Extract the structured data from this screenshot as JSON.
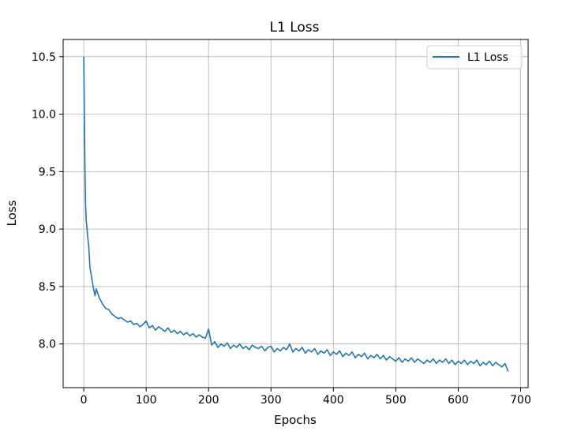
{
  "chart_data": {
    "type": "line",
    "title": "L1 Loss",
    "xlabel": "Epochs",
    "ylabel": "Loss",
    "xlim": [
      -33,
      712
    ],
    "ylim": [
      7.62,
      10.65
    ],
    "xticks": [
      0,
      100,
      200,
      300,
      400,
      500,
      600,
      700
    ],
    "yticks": [
      8.0,
      8.5,
      9.0,
      9.5,
      10.0,
      10.5
    ],
    "grid": true,
    "legend_position": "top-right",
    "series": [
      {
        "name": "L1 Loss",
        "color": "#1f77b4",
        "x": [
          0,
          1,
          2,
          3,
          4,
          5,
          6,
          8,
          10,
          12,
          15,
          18,
          20,
          25,
          30,
          35,
          40,
          45,
          50,
          55,
          60,
          65,
          70,
          75,
          80,
          85,
          90,
          95,
          100,
          105,
          110,
          115,
          120,
          125,
          130,
          135,
          140,
          145,
          150,
          155,
          160,
          165,
          170,
          175,
          180,
          185,
          190,
          195,
          200,
          205,
          210,
          215,
          220,
          225,
          230,
          235,
          240,
          245,
          250,
          255,
          260,
          265,
          270,
          275,
          280,
          285,
          290,
          295,
          300,
          305,
          310,
          315,
          320,
          325,
          330,
          335,
          340,
          345,
          350,
          355,
          360,
          365,
          370,
          375,
          380,
          385,
          390,
          395,
          400,
          405,
          410,
          415,
          420,
          425,
          430,
          435,
          440,
          445,
          450,
          455,
          460,
          465,
          470,
          475,
          480,
          485,
          490,
          495,
          500,
          505,
          510,
          515,
          520,
          525,
          530,
          535,
          540,
          545,
          550,
          555,
          560,
          565,
          570,
          575,
          580,
          585,
          590,
          595,
          600,
          605,
          610,
          615,
          620,
          625,
          630,
          635,
          640,
          645,
          650,
          655,
          660,
          665,
          670,
          675,
          680
        ],
        "y": [
          10.5,
          10.0,
          9.5,
          9.2,
          9.07,
          9.02,
          8.95,
          8.85,
          8.66,
          8.6,
          8.5,
          8.42,
          8.48,
          8.4,
          8.35,
          8.31,
          8.3,
          8.26,
          8.24,
          8.22,
          8.23,
          8.21,
          8.19,
          8.2,
          8.17,
          8.18,
          8.15,
          8.17,
          8.2,
          8.14,
          8.16,
          8.12,
          8.15,
          8.13,
          8.11,
          8.14,
          8.1,
          8.12,
          8.09,
          8.11,
          8.08,
          8.1,
          8.07,
          8.09,
          8.06,
          8.08,
          8.06,
          8.05,
          8.13,
          7.99,
          8.02,
          7.97,
          8.0,
          7.98,
          8.01,
          7.96,
          7.99,
          7.97,
          8.0,
          7.96,
          7.98,
          7.95,
          7.99,
          7.97,
          7.96,
          7.98,
          7.94,
          7.97,
          7.98,
          7.93,
          7.96,
          7.94,
          7.97,
          7.95,
          8.0,
          7.93,
          7.96,
          7.94,
          7.97,
          7.92,
          7.95,
          7.93,
          7.96,
          7.91,
          7.94,
          7.92,
          7.95,
          7.9,
          7.93,
          7.91,
          7.94,
          7.89,
          7.92,
          7.9,
          7.93,
          7.88,
          7.91,
          7.89,
          7.92,
          7.87,
          7.9,
          7.88,
          7.91,
          7.87,
          7.9,
          7.86,
          7.89,
          7.87,
          7.85,
          7.88,
          7.84,
          7.87,
          7.85,
          7.88,
          7.84,
          7.87,
          7.85,
          7.83,
          7.86,
          7.84,
          7.87,
          7.83,
          7.86,
          7.84,
          7.87,
          7.83,
          7.86,
          7.82,
          7.85,
          7.83,
          7.86,
          7.82,
          7.85,
          7.83,
          7.86,
          7.81,
          7.84,
          7.82,
          7.85,
          7.81,
          7.84,
          7.82,
          7.8,
          7.83,
          7.76
        ]
      }
    ]
  }
}
